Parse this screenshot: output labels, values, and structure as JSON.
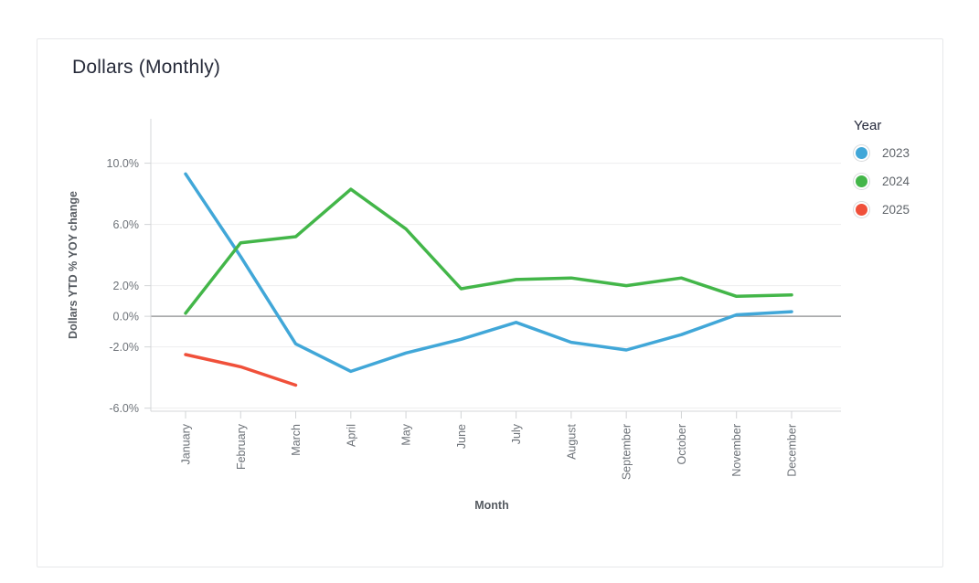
{
  "card": {
    "title": "Dollars (Monthly)"
  },
  "legend": {
    "title": "Year",
    "items": [
      {
        "label": "2023",
        "color": "#41a7d8"
      },
      {
        "label": "2024",
        "color": "#43b649"
      },
      {
        "label": "2025",
        "color": "#f0503a"
      }
    ]
  },
  "chart_data": {
    "type": "line",
    "title": "Dollars (Monthly)",
    "xlabel": "Month",
    "ylabel": "Dollars YTD % YOY change",
    "categories": [
      "January",
      "February",
      "March",
      "April",
      "May",
      "June",
      "July",
      "August",
      "September",
      "October",
      "November",
      "December"
    ],
    "series": [
      {
        "name": "2023",
        "color": "#41a7d8",
        "values": [
          9.3,
          3.9,
          -1.8,
          -3.6,
          -2.4,
          -1.5,
          -0.4,
          -1.7,
          -2.2,
          -1.2,
          0.1,
          0.3
        ]
      },
      {
        "name": "2024",
        "color": "#43b649",
        "values": [
          0.2,
          4.8,
          5.2,
          8.3,
          5.7,
          1.8,
          2.4,
          2.5,
          2.0,
          2.5,
          1.3,
          1.4
        ]
      },
      {
        "name": "2025",
        "color": "#f0503a",
        "values": [
          -2.5,
          -3.3,
          -4.5
        ]
      }
    ],
    "y_ticks": [
      {
        "value": 10,
        "label": "10.0%"
      },
      {
        "value": 6,
        "label": "6.0%"
      },
      {
        "value": 2,
        "label": "2.0%"
      },
      {
        "value": 0,
        "label": "0.0%"
      },
      {
        "value": -2,
        "label": "-2.0%"
      },
      {
        "value": -6,
        "label": "-6.0%"
      }
    ],
    "ylim": [
      -6.2,
      12.9
    ],
    "grid": "horizontal-at-labeled-ticks-only",
    "zero_line": true,
    "legend_position": "right",
    "x_labels_rotated_90": true
  },
  "colors": {
    "grid": "#ededee",
    "zero_line": "#9e9fa1",
    "axis": "#d5d7d9",
    "tick_mark": "#d2d4d6",
    "tick_label": "#6e7379",
    "axis_title": "#565b61",
    "title": "#272b3a",
    "card_border": "#e7e8ea"
  }
}
